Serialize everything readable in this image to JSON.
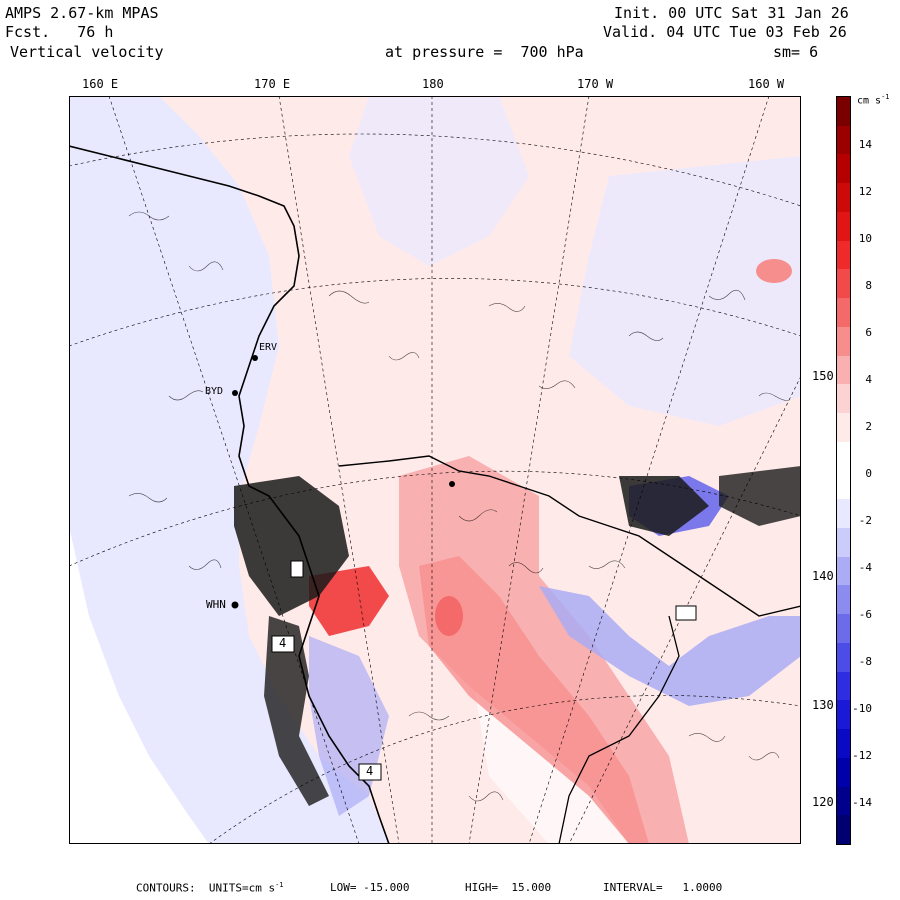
{
  "header": {
    "model": "AMPS 2.67-km MPAS",
    "forecast": "Fcst.   76 h",
    "field": "Vertical velocity",
    "init": "Init. 00 UTC Sat 31 Jan 26",
    "valid": "Valid. 04 UTC Tue 03 Feb 26",
    "pressure": "at pressure =  700 hPa",
    "smooth": "sm= 6"
  },
  "top_ticks": [
    "160 E",
    "170 E",
    "180",
    "170 W",
    "160 W"
  ],
  "right_ticks": [
    "150 W",
    "140 W",
    "130 W",
    "120 W"
  ],
  "colorbar": {
    "unit": "cm s",
    "unit_exp": "-1",
    "labels": [
      "14",
      "12",
      "10",
      "8",
      "6",
      "4",
      "2",
      "0",
      "-2",
      "-4",
      "-6",
      "-8",
      "-10",
      "-12",
      "-14"
    ],
    "colors": [
      "#7a0000",
      "#9a0000",
      "#b40000",
      "#cc0a0a",
      "#e01515",
      "#ee2a2a",
      "#f24a4a",
      "#f46a6a",
      "#f78e8e",
      "#f9b0b0",
      "#fcd2d2",
      "#ffeaea",
      "#ffffff",
      "#ffffff",
      "#e8e8ff",
      "#ccccfa",
      "#acacf5",
      "#8c8cf0",
      "#6c6cea",
      "#4c4ce6",
      "#2e2ee0",
      "#1a1ad6",
      "#0a0ac4",
      "#0000aa",
      "#00008c",
      "#000070"
    ]
  },
  "stations": [
    "WHN",
    "BYD",
    "ERV"
  ],
  "boxes": [
    "4",
    "4"
  ],
  "footer": {
    "contours": "CONTOURS:  UNITS=cm s",
    "contours_exp": "-1",
    "low": "LOW= -15.000",
    "high": "HIGH=  15.000",
    "interval": "INTERVAL=   1.0000"
  },
  "colors": {
    "background_land": "#ffeaea",
    "background_ice": "#e8e8ff",
    "coast": "#000000"
  }
}
